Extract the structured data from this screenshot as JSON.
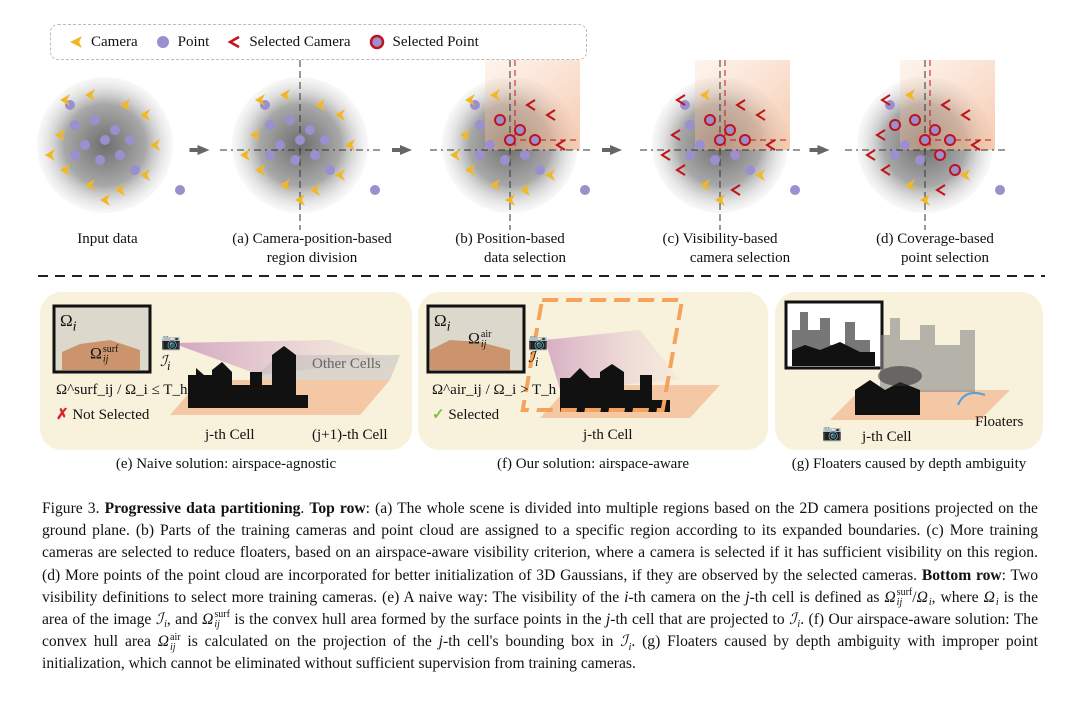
{
  "legend": [
    {
      "label": "Camera",
      "icon": "camera-chevron-icon",
      "color": "#f2b824"
    },
    {
      "label": "Point",
      "icon": "point-icon",
      "color": "#9b8fcf"
    },
    {
      "label": "Selected Camera",
      "icon": "selected-camera-chevron-icon",
      "color": "#c0141b"
    },
    {
      "label": "Selected Point",
      "icon": "selected-point-icon",
      "color": "#c0141b"
    }
  ],
  "top_row": [
    {
      "line1": "Input data",
      "line2": ""
    },
    {
      "line1": "(a) Camera-position-based",
      "line2": "region division"
    },
    {
      "line1": "(b) Position-based",
      "line2": "data selection"
    },
    {
      "line1": "(c) Visibility-based",
      "line2": "camera selection"
    },
    {
      "line1": "(d) Coverage-based",
      "line2": "point selection"
    }
  ],
  "panel_e": {
    "omega_i": "Ω",
    "omega_i_sub": "i",
    "omega_surf": "Ω",
    "omega_surf_sup": "surf",
    "omega_surf_sub": "ij",
    "camera_label": "ℐ",
    "camera_label_sub": "i",
    "criterion": "Ω^surf_ij / Ω_i ≤ T_h",
    "result": "Not Selected",
    "other_cells": "Other Cells",
    "cell_j": "j-th Cell",
    "cell_j1": "(j+1)-th Cell",
    "caption": "(e) Naive solution: airspace-agnostic"
  },
  "panel_f": {
    "omega_i": "Ω",
    "omega_i_sub": "i",
    "omega_air": "Ω",
    "omega_air_sup": "air",
    "omega_air_sub": "ij",
    "camera_label": "ℐ",
    "camera_label_sub": "i",
    "criterion": "Ω^air_ij / Ω_i > T_h",
    "result": "Selected",
    "cell_j": "j-th Cell",
    "caption": "(f) Our solution: airspace-aware"
  },
  "panel_g": {
    "floaters": "Floaters",
    "cell_j": "j-th Cell",
    "caption": "(g) Floaters caused by depth ambiguity"
  },
  "caption": [
    {
      "t": "text",
      "v": "Figure 3. "
    },
    {
      "t": "bold",
      "v": "Progressive data partitioning"
    },
    {
      "t": "text",
      "v": ". "
    },
    {
      "t": "bold",
      "v": "Top row"
    },
    {
      "t": "text",
      "v": ": (a) The whole scene is divided into multiple regions based on the 2D camera positions projected on the ground plane. (b) Parts of the training cameras and point cloud are assigned to a specific region according to its expanded boundaries.  (c) More training cameras are selected to reduce floaters, based on an airspace-aware visibility criterion, where a camera is selected if it has sufficient visibility on this region.  (d) More points of the point cloud are incorporated for better initialization of 3D Gaussians, if they are observed by the selected cameras.  "
    },
    {
      "t": "bold",
      "v": "Bottom row"
    },
    {
      "t": "text",
      "v": ":  Two visibility definitions to select more training cameras.  (e) A naive way: The visibility of the "
    },
    {
      "t": "math",
      "v": "i"
    },
    {
      "t": "text",
      "v": "-th camera on the "
    },
    {
      "t": "math",
      "v": "j"
    },
    {
      "t": "text",
      "v": "-th cell is defined as "
    },
    {
      "t": "math",
      "v": "Ω",
      "sup": "surf",
      "sub": "ij"
    },
    {
      "t": "text",
      "v": "/"
    },
    {
      "t": "math",
      "v": "Ω",
      "sub": "i"
    },
    {
      "t": "text",
      "v": ", where "
    },
    {
      "t": "math",
      "v": "Ω",
      "sub": "i"
    },
    {
      "t": "text",
      "v": " is the area of the image "
    },
    {
      "t": "math",
      "v": "ℐ",
      "sub": "i"
    },
    {
      "t": "text",
      "v": ", and "
    },
    {
      "t": "math",
      "v": "Ω",
      "sup": "surf",
      "sub": "ij"
    },
    {
      "t": "text",
      "v": " is the convex hull area formed by the surface points in the "
    },
    {
      "t": "math",
      "v": "j"
    },
    {
      "t": "text",
      "v": "-th cell that are projected to "
    },
    {
      "t": "math",
      "v": "ℐ",
      "sub": "i"
    },
    {
      "t": "text",
      "v": ". (f) Our airspace-aware solution: The convex hull area "
    },
    {
      "t": "math",
      "v": "Ω",
      "sup": "air",
      "sub": "ij"
    },
    {
      "t": "text",
      "v": " is calculated on the projection of the "
    },
    {
      "t": "math",
      "v": "j"
    },
    {
      "t": "text",
      "v": "-th cell's bounding box in "
    },
    {
      "t": "math",
      "v": "ℐ",
      "sub": "i"
    },
    {
      "t": "text",
      "v": ". (g) Floaters caused by depth ambiguity with improper point initialization, which cannot be eliminated without sufficient supervision from training cameras."
    }
  ],
  "colors": {
    "camera": "#f2b824",
    "point": "#9b8fcf",
    "selected": "#c0141b",
    "panel_bg": "#f8f1dc",
    "orange": "#f5a35a"
  }
}
